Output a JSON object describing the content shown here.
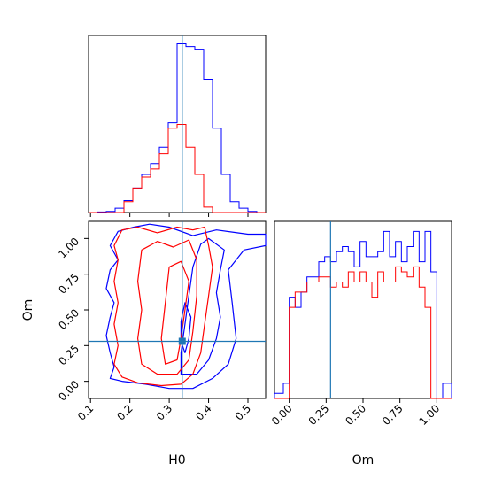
{
  "chart_data": {
    "type": "corner",
    "parameters": [
      "H0",
      "Om"
    ],
    "truths": {
      "H0": 0.333,
      "Om": 0.28
    },
    "series": [
      {
        "name": "",
        "color": "#0000ff"
      },
      {
        "name": "",
        "color": "#ff0000"
      }
    ],
    "truth_color": "#1f77b4",
    "panels": {
      "h0_hist": {
        "xlim": [
          0.095,
          0.545
        ],
        "bins": [
          0.095,
          0.1175,
          0.14,
          0.1625,
          0.185,
          0.2075,
          0.23,
          0.2525,
          0.275,
          0.2975,
          0.32,
          0.3425,
          0.365,
          0.3875,
          0.41,
          0.4325,
          0.455,
          0.4775,
          0.5,
          0.5225,
          0.545
        ],
        "blue": [
          0,
          1,
          2,
          8,
          22,
          45,
          70,
          90,
          120,
          165,
          310,
          305,
          300,
          245,
          155,
          70,
          20,
          8,
          2,
          0
        ],
        "red": [
          0,
          0,
          0,
          0,
          20,
          45,
          65,
          80,
          108,
          155,
          162,
          120,
          70,
          10,
          0,
          0,
          0,
          0,
          0,
          0
        ]
      },
      "om_hist": {
        "xlim": [
          -0.1,
          1.1
        ],
        "bins": [
          -0.1,
          -0.04,
          0.0,
          0.04,
          0.08,
          0.12,
          0.16,
          0.2,
          0.24,
          0.28,
          0.32,
          0.36,
          0.4,
          0.44,
          0.48,
          0.52,
          0.56,
          0.6,
          0.64,
          0.68,
          0.72,
          0.76,
          0.8,
          0.84,
          0.88,
          0.92,
          0.96,
          1.0,
          1.04,
          1.1
        ],
        "blue": [
          5,
          15,
          100,
          90,
          105,
          120,
          120,
          135,
          140,
          135,
          145,
          150,
          145,
          130,
          155,
          140,
          140,
          145,
          165,
          140,
          155,
          135,
          150,
          165,
          135,
          165,
          125,
          0,
          15
        ],
        "red": [
          0,
          0,
          90,
          105,
          105,
          115,
          115,
          120,
          120,
          110,
          115,
          110,
          125,
          115,
          125,
          115,
          100,
          125,
          115,
          115,
          130,
          125,
          120,
          130,
          110,
          90,
          0,
          0,
          0
        ]
      },
      "joint": {
        "xlim": [
          0.095,
          0.545
        ],
        "ylim": [
          -0.12,
          1.12
        ],
        "xticks": [
          "0.1",
          "0.2",
          "0.3",
          "0.4",
          "0.5"
        ],
        "yticks": [
          "0.00",
          "0.25",
          "0.50",
          "0.75",
          "1.00"
        ],
        "om_ticks": [
          "0.00",
          "0.25",
          "0.50",
          "0.75",
          "1.00"
        ]
      }
    },
    "xlabel_left": "H0",
    "xlabel_right": "Om",
    "ylabel": "Om"
  },
  "colors": {
    "blue": "#0000ff",
    "red": "#ff0000",
    "truth": "#1f77b4"
  }
}
